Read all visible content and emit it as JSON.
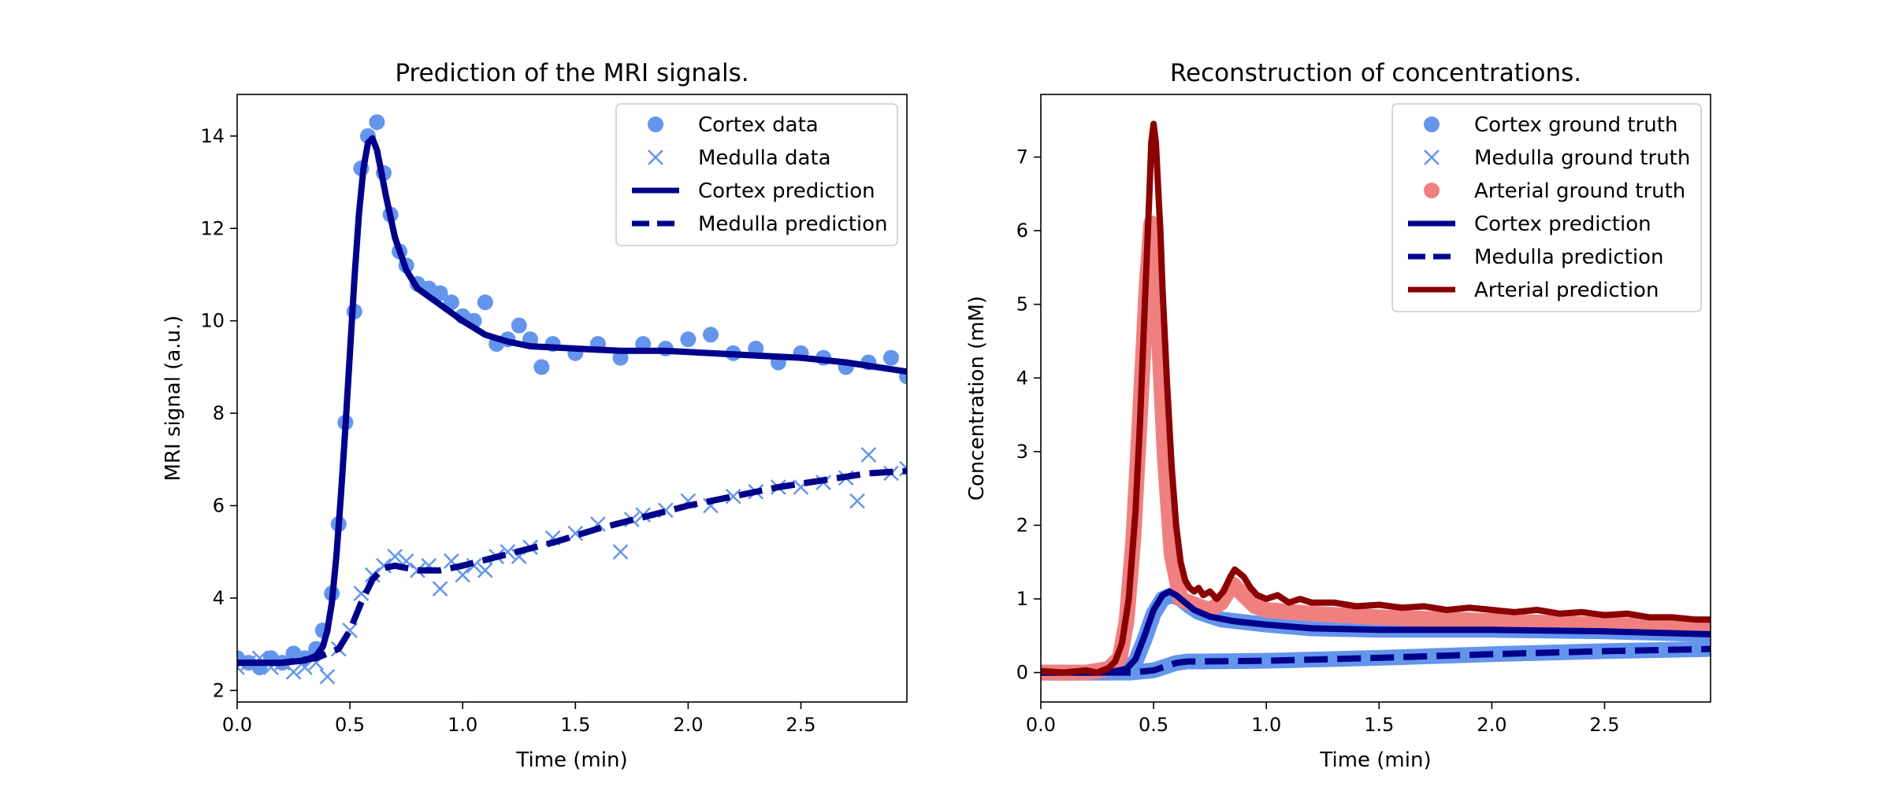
{
  "figure": {
    "background": "#ffffff"
  },
  "chart_data": [
    {
      "type": "line",
      "title": "Prediction of the MRI signals.",
      "xlabel": "Time (min)",
      "ylabel": "MRI signal (a.u.)",
      "xlim": [
        0,
        2.97
      ],
      "ylim": [
        1.75,
        14.9
      ],
      "xticks": [
        0,
        0.5,
        1,
        1.5,
        2,
        2.5
      ],
      "xticklabels": [
        "0.0",
        "0.5",
        "1.0",
        "1.5",
        "2.0",
        "2.5"
      ],
      "yticks": [
        2,
        4,
        6,
        8,
        10,
        12,
        14
      ],
      "yticklabels": [
        "2",
        "4",
        "6",
        "8",
        "10",
        "12",
        "14"
      ],
      "grid": false,
      "legend_position": "top-right",
      "series": [
        {
          "name": "Cortex data",
          "kind": "scatter",
          "marker": "circle",
          "color": "#6495ED",
          "x": [
            0.0,
            0.05,
            0.1,
            0.15,
            0.2,
            0.25,
            0.3,
            0.35,
            0.38,
            0.42,
            0.45,
            0.48,
            0.52,
            0.55,
            0.58,
            0.62,
            0.65,
            0.68,
            0.72,
            0.75,
            0.8,
            0.85,
            0.9,
            0.95,
            1.0,
            1.05,
            1.1,
            1.15,
            1.2,
            1.25,
            1.3,
            1.35,
            1.4,
            1.5,
            1.6,
            1.7,
            1.8,
            1.9,
            2.0,
            2.1,
            2.2,
            2.3,
            2.4,
            2.5,
            2.6,
            2.7,
            2.8,
            2.9,
            2.97
          ],
          "y": [
            2.7,
            2.6,
            2.5,
            2.7,
            2.6,
            2.8,
            2.7,
            2.9,
            3.3,
            4.1,
            5.6,
            7.8,
            10.2,
            13.3,
            14.0,
            14.3,
            13.2,
            12.3,
            11.5,
            11.2,
            10.8,
            10.7,
            10.6,
            10.4,
            10.1,
            10.0,
            10.4,
            9.5,
            9.6,
            9.9,
            9.6,
            9.0,
            9.5,
            9.3,
            9.5,
            9.2,
            9.5,
            9.4,
            9.6,
            9.7,
            9.3,
            9.4,
            9.1,
            9.3,
            9.2,
            9.0,
            9.1,
            9.2,
            8.8
          ]
        },
        {
          "name": "Medulla data",
          "kind": "scatter",
          "marker": "x",
          "color": "#6495ED",
          "x": [
            0.0,
            0.05,
            0.1,
            0.15,
            0.2,
            0.25,
            0.3,
            0.35,
            0.4,
            0.45,
            0.5,
            0.55,
            0.6,
            0.65,
            0.7,
            0.75,
            0.8,
            0.85,
            0.9,
            0.95,
            1.0,
            1.05,
            1.1,
            1.15,
            1.2,
            1.25,
            1.3,
            1.4,
            1.5,
            1.6,
            1.7,
            1.75,
            1.8,
            1.9,
            2.0,
            2.1,
            2.2,
            2.3,
            2.4,
            2.5,
            2.6,
            2.7,
            2.75,
            2.8,
            2.9,
            2.97
          ],
          "y": [
            2.5,
            2.6,
            2.7,
            2.5,
            2.6,
            2.4,
            2.5,
            2.6,
            2.3,
            2.9,
            3.3,
            4.1,
            4.5,
            4.7,
            4.9,
            4.8,
            4.6,
            4.7,
            4.2,
            4.8,
            4.5,
            4.7,
            4.6,
            4.9,
            5.0,
            4.9,
            5.1,
            5.3,
            5.4,
            5.6,
            5.0,
            5.7,
            5.8,
            5.9,
            6.1,
            6.0,
            6.2,
            6.3,
            6.4,
            6.4,
            6.5,
            6.6,
            6.1,
            7.1,
            6.7,
            6.8
          ]
        },
        {
          "name": "Cortex prediction",
          "kind": "line",
          "linestyle": "solid",
          "color": "#00008B",
          "x": [
            0.0,
            0.2,
            0.3,
            0.35,
            0.38,
            0.4,
            0.42,
            0.44,
            0.46,
            0.48,
            0.5,
            0.52,
            0.54,
            0.56,
            0.58,
            0.6,
            0.62,
            0.64,
            0.66,
            0.7,
            0.75,
            0.8,
            0.9,
            1.0,
            1.1,
            1.2,
            1.3,
            1.5,
            1.7,
            1.9,
            2.1,
            2.3,
            2.5,
            2.7,
            2.97
          ],
          "y": [
            2.6,
            2.6,
            2.65,
            2.75,
            2.95,
            3.3,
            3.9,
            4.9,
            6.2,
            7.7,
            9.3,
            10.9,
            12.3,
            13.3,
            13.85,
            13.95,
            13.7,
            13.2,
            12.7,
            11.8,
            11.1,
            10.7,
            10.35,
            10.0,
            9.7,
            9.55,
            9.45,
            9.4,
            9.35,
            9.35,
            9.3,
            9.25,
            9.2,
            9.1,
            8.9
          ]
        },
        {
          "name": "Medulla prediction",
          "kind": "line",
          "linestyle": "dashed",
          "color": "#00008B",
          "x": [
            0.0,
            0.2,
            0.35,
            0.45,
            0.5,
            0.55,
            0.6,
            0.65,
            0.7,
            0.8,
            0.9,
            1.0,
            1.2,
            1.4,
            1.6,
            1.8,
            2.0,
            2.2,
            2.4,
            2.6,
            2.8,
            2.97
          ],
          "y": [
            2.6,
            2.6,
            2.7,
            2.9,
            3.3,
            3.9,
            4.4,
            4.65,
            4.7,
            4.6,
            4.6,
            4.7,
            4.95,
            5.2,
            5.5,
            5.75,
            6.0,
            6.2,
            6.4,
            6.55,
            6.7,
            6.75
          ]
        }
      ]
    },
    {
      "type": "line",
      "title": "Reconstruction of concentrations.",
      "xlabel": "Time (min)",
      "ylabel": "Concentration (mM)",
      "xlim": [
        0,
        2.97
      ],
      "ylim": [
        -0.4,
        7.85
      ],
      "xticks": [
        0,
        0.5,
        1,
        1.5,
        2,
        2.5
      ],
      "xticklabels": [
        "0.0",
        "0.5",
        "1.0",
        "1.5",
        "2.0",
        "2.5"
      ],
      "yticks": [
        0,
        1,
        2,
        3,
        4,
        5,
        6,
        7
      ],
      "yticklabels": [
        "0",
        "1",
        "2",
        "3",
        "4",
        "5",
        "6",
        "7"
      ],
      "grid": false,
      "legend_position": "top-right",
      "series": [
        {
          "name": "Cortex ground truth",
          "kind": "thick-line",
          "legend_marker": "circle",
          "color": "#6495ED",
          "x": [
            0.0,
            0.3,
            0.38,
            0.42,
            0.46,
            0.5,
            0.54,
            0.58,
            0.62,
            0.66,
            0.7,
            0.8,
            1.0,
            1.2,
            1.5,
            2.0,
            2.5,
            2.97
          ],
          "y": [
            0.0,
            0.0,
            0.04,
            0.15,
            0.45,
            0.8,
            1.0,
            1.05,
            1.0,
            0.9,
            0.82,
            0.72,
            0.65,
            0.6,
            0.58,
            0.58,
            0.56,
            0.52
          ]
        },
        {
          "name": "Medulla ground truth",
          "kind": "thick-line",
          "legend_marker": "x",
          "color": "#6495ED",
          "x": [
            0.0,
            0.4,
            0.5,
            0.55,
            0.6,
            0.65,
            0.7,
            1.0,
            1.5,
            2.0,
            2.5,
            2.97
          ],
          "y": [
            0.0,
            0.0,
            0.03,
            0.08,
            0.13,
            0.15,
            0.15,
            0.16,
            0.2,
            0.25,
            0.29,
            0.32
          ]
        },
        {
          "name": "Arterial ground truth",
          "kind": "thick-line",
          "legend_marker": "circle",
          "color": "#F08080",
          "x": [
            0.0,
            0.2,
            0.3,
            0.35,
            0.38,
            0.41,
            0.44,
            0.47,
            0.49,
            0.5,
            0.52,
            0.55,
            0.58,
            0.62,
            0.66,
            0.7,
            0.75,
            0.8,
            0.85,
            0.9,
            0.95,
            1.0,
            1.2,
            1.5,
            2.0,
            2.5,
            2.97
          ],
          "y": [
            0.0,
            0.0,
            0.05,
            0.2,
            0.7,
            1.8,
            3.5,
            5.3,
            6.1,
            6.0,
            4.8,
            2.9,
            1.6,
            1.0,
            0.95,
            0.9,
            0.85,
            0.95,
            1.2,
            1.05,
            0.9,
            0.85,
            0.8,
            0.75,
            0.7,
            0.65,
            0.62
          ]
        },
        {
          "name": "Cortex prediction",
          "kind": "line",
          "linestyle": "solid",
          "color": "#00008B",
          "x": [
            0.0,
            0.3,
            0.38,
            0.42,
            0.46,
            0.5,
            0.54,
            0.57,
            0.6,
            0.64,
            0.68,
            0.75,
            0.85,
            1.0,
            1.2,
            1.5,
            2.0,
            2.5,
            2.97
          ],
          "y": [
            0.0,
            0.0,
            0.05,
            0.18,
            0.5,
            0.85,
            1.05,
            1.1,
            1.05,
            0.95,
            0.85,
            0.76,
            0.7,
            0.65,
            0.6,
            0.58,
            0.58,
            0.56,
            0.52
          ]
        },
        {
          "name": "Medulla prediction",
          "kind": "line",
          "linestyle": "dashed",
          "color": "#00008B",
          "x": [
            0.0,
            0.4,
            0.5,
            0.55,
            0.6,
            0.65,
            0.7,
            1.0,
            1.5,
            2.0,
            2.5,
            2.97
          ],
          "y": [
            0.0,
            0.0,
            0.03,
            0.08,
            0.13,
            0.15,
            0.15,
            0.16,
            0.2,
            0.25,
            0.29,
            0.32
          ]
        },
        {
          "name": "Arterial prediction",
          "kind": "line",
          "linestyle": "solid",
          "color": "#8B0000",
          "x": [
            0.0,
            0.1,
            0.2,
            0.25,
            0.3,
            0.33,
            0.36,
            0.39,
            0.42,
            0.44,
            0.46,
            0.48,
            0.49,
            0.5,
            0.51,
            0.52,
            0.53,
            0.54,
            0.56,
            0.58,
            0.6,
            0.62,
            0.64,
            0.66,
            0.68,
            0.7,
            0.72,
            0.75,
            0.78,
            0.81,
            0.84,
            0.86,
            0.88,
            0.9,
            0.93,
            0.96,
            1.0,
            1.05,
            1.1,
            1.15,
            1.2,
            1.3,
            1.4,
            1.5,
            1.6,
            1.7,
            1.8,
            1.9,
            2.0,
            2.1,
            2.2,
            2.3,
            2.4,
            2.5,
            2.6,
            2.7,
            2.8,
            2.9,
            2.97
          ],
          "y": [
            0.02,
            0.0,
            0.03,
            0.0,
            0.06,
            0.15,
            0.4,
            1.0,
            2.2,
            3.4,
            4.9,
            6.4,
            7.2,
            7.45,
            7.2,
            6.6,
            6.0,
            5.2,
            3.9,
            2.8,
            2.0,
            1.5,
            1.25,
            1.15,
            1.1,
            1.15,
            1.05,
            1.1,
            1.0,
            1.1,
            1.3,
            1.4,
            1.35,
            1.3,
            1.15,
            1.05,
            1.0,
            1.05,
            0.95,
            1.0,
            0.95,
            0.95,
            0.9,
            0.92,
            0.88,
            0.9,
            0.85,
            0.88,
            0.85,
            0.82,
            0.85,
            0.8,
            0.82,
            0.78,
            0.8,
            0.75,
            0.75,
            0.72,
            0.72
          ]
        }
      ]
    }
  ]
}
